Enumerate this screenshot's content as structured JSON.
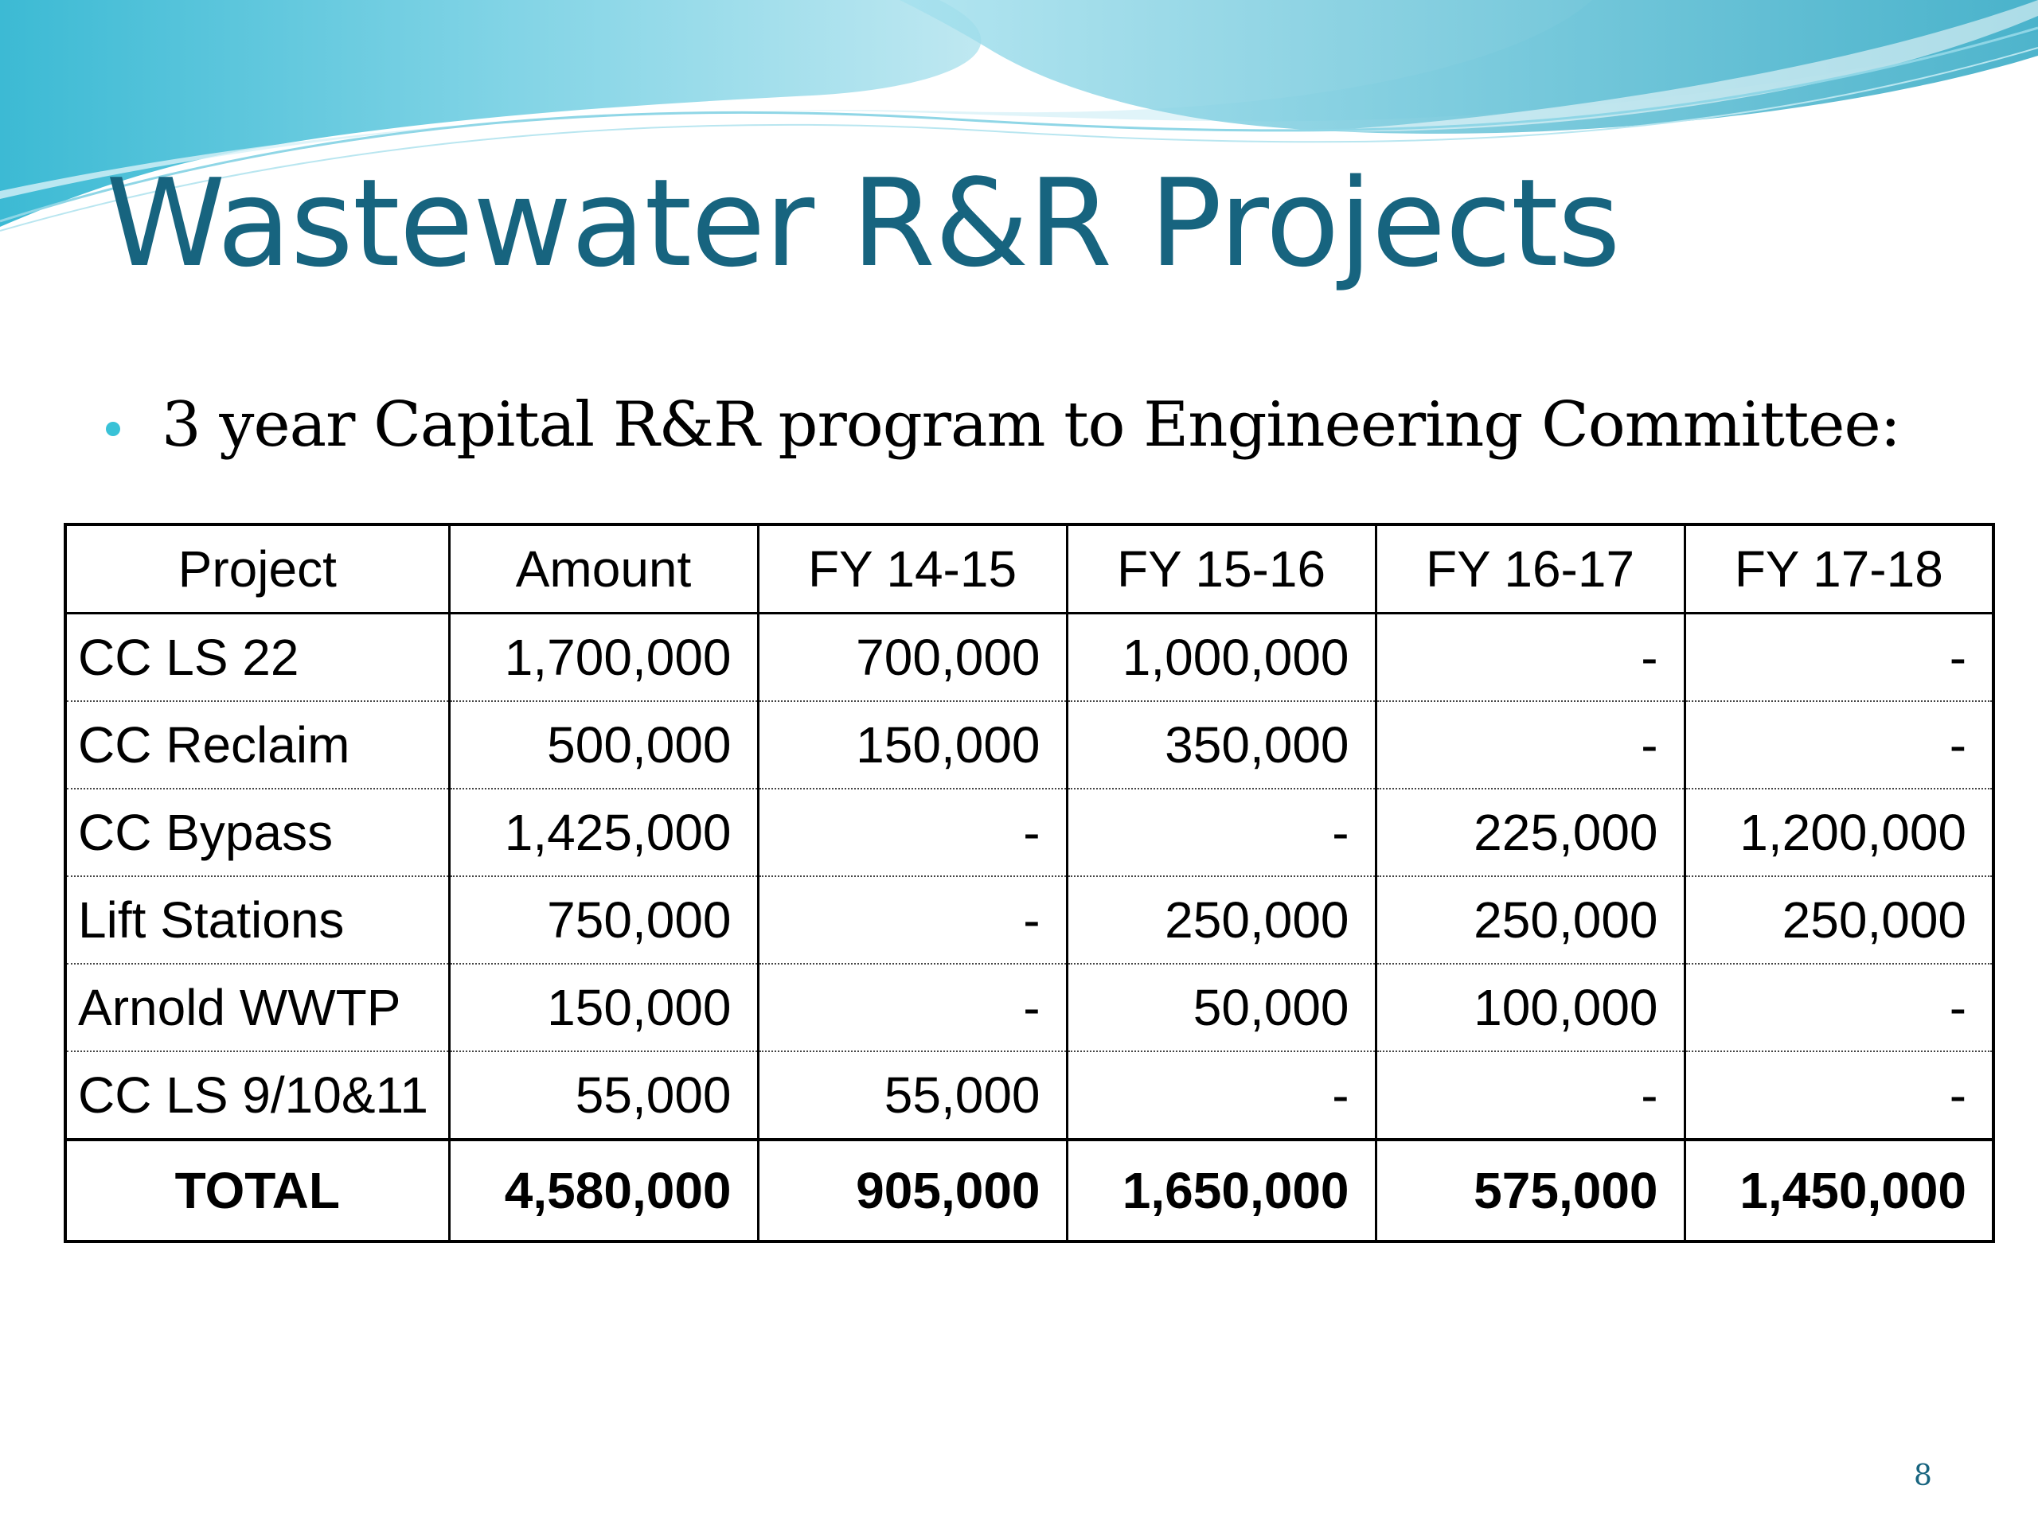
{
  "slide": {
    "title": "Wastewater R&R Projects",
    "bullet": "3 year Capital R&R program to Engineering Committee:",
    "page_number": "8"
  },
  "colors": {
    "title": "#17647f",
    "bullet": "#39c2d7",
    "wave_light": "#bfeaf3",
    "wave_mid": "#6fcde0",
    "wave_dark": "#2fa9c4"
  },
  "table": {
    "headers": [
      "Project",
      "Amount",
      "FY 14-15",
      "FY 15-16",
      "FY 16-17",
      "FY 17-18"
    ],
    "rows": [
      [
        "CC LS 22",
        "1,700,000",
        "700,000",
        "1,000,000",
        "-",
        "-"
      ],
      [
        "CC Reclaim",
        "500,000",
        "150,000",
        "350,000",
        "-",
        "-"
      ],
      [
        "CC Bypass",
        "1,425,000",
        "-",
        "-",
        "225,000",
        "1,200,000"
      ],
      [
        "Lift Stations",
        "750,000",
        "-",
        "250,000",
        "250,000",
        "250,000"
      ],
      [
        "Arnold WWTP",
        "150,000",
        "-",
        "50,000",
        "100,000",
        "-"
      ],
      [
        "CC LS 9/10&11",
        "55,000",
        "55,000",
        "-",
        "-",
        "-"
      ]
    ],
    "total": [
      "TOTAL",
      "4,580,000",
      "905,000",
      "1,650,000",
      "575,000",
      "1,450,000"
    ]
  }
}
